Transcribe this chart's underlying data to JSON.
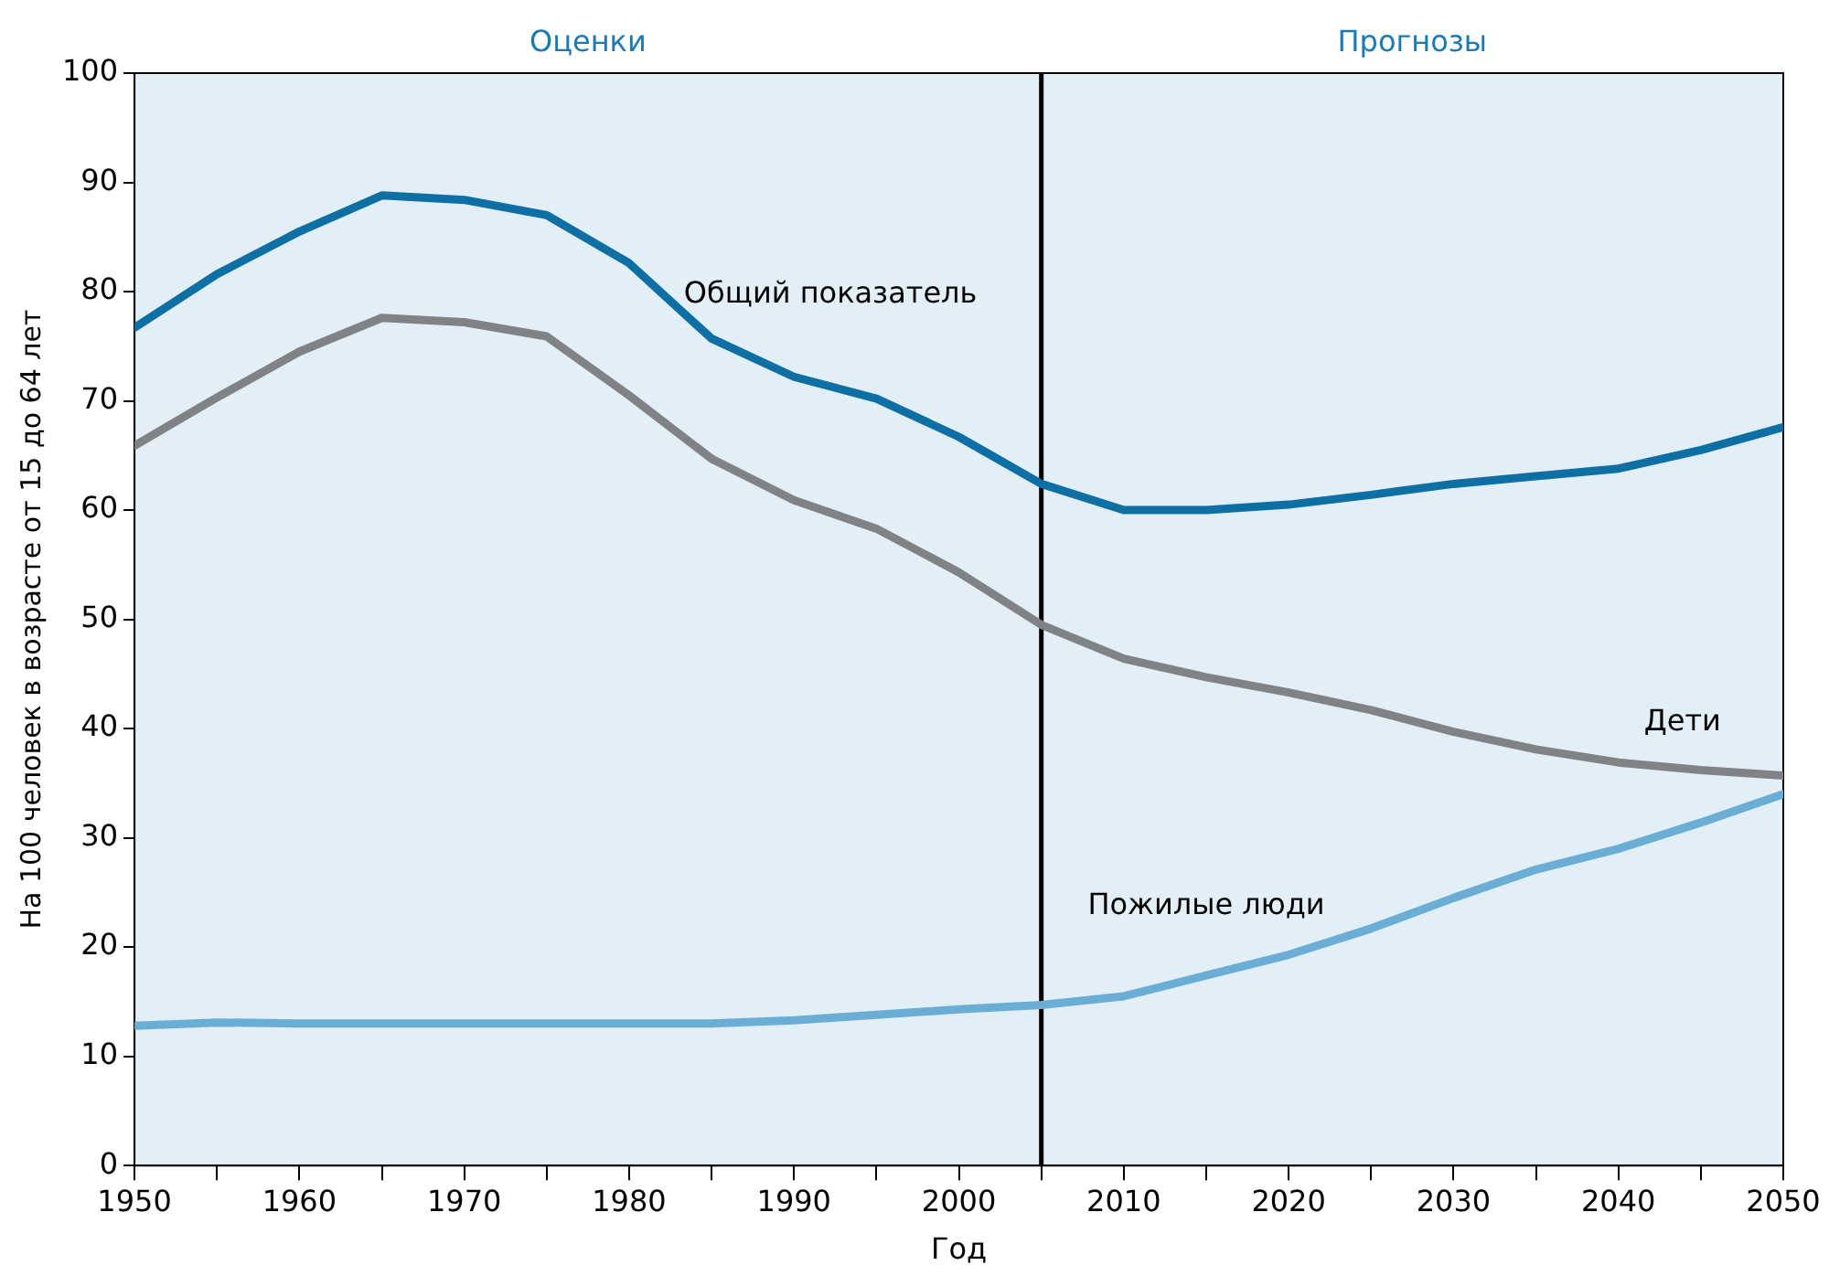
{
  "chart_data": {
    "type": "line",
    "xlabel": "Год",
    "ylabel": "На 100 человек в возрасте от 15 до 64 лет",
    "x": [
      1950,
      1955,
      1960,
      1965,
      1970,
      1975,
      1980,
      1985,
      1990,
      1995,
      2000,
      2005,
      2010,
      2015,
      2020,
      2025,
      2030,
      2035,
      2040,
      2045,
      2050
    ],
    "series": [
      {
        "name": "Общий показатель",
        "color": "#0e6fa5",
        "values": [
          76.7,
          81.6,
          85.5,
          88.8,
          88.4,
          87,
          82.6,
          75.7,
          72.2,
          70.2,
          66.7,
          62.4,
          60,
          60,
          60.5,
          61.4,
          62.4,
          63.1,
          63.8,
          65.5,
          67.6
        ]
      },
      {
        "name": "Дети",
        "color": "#808285",
        "values": [
          65.9,
          70.3,
          74.5,
          77.6,
          77.2,
          75.9,
          70.5,
          64.7,
          60.9,
          58.3,
          54.3,
          49.5,
          46.4,
          44.7,
          43.3,
          41.7,
          39.7,
          38.1,
          36.9,
          36.2,
          35.7
        ]
      },
      {
        "name": "Пожилые люди",
        "color": "#6aaed6",
        "values": [
          12.8,
          13.1,
          13,
          13,
          13,
          13,
          13,
          13,
          13.3,
          13.8,
          14.3,
          14.7,
          15.5,
          17.4,
          19.3,
          21.7,
          24.5,
          27.1,
          29,
          31.4,
          34
        ]
      }
    ],
    "xlim": [
      1950,
      2050
    ],
    "xticks": [
      1950,
      {
        "value": 1955,
        "label": null
      },
      1960,
      {
        "value": 1965,
        "label": null
      },
      1970,
      {
        "value": 1975,
        "label": null
      },
      1980,
      {
        "value": 1985,
        "label": null
      },
      1990,
      {
        "value": 1995,
        "label": null
      },
      2000,
      {
        "value": 2005,
        "label": null
      },
      2010,
      {
        "value": 2015,
        "label": null
      },
      2020,
      {
        "value": 2025,
        "label": null
      },
      2030,
      {
        "value": 2035,
        "label": null
      },
      2040,
      {
        "value": 2045,
        "label": null
      },
      2050
    ],
    "ylim": [
      0,
      100
    ],
    "yticks": [
      0,
      10,
      20,
      30,
      40,
      50,
      60,
      70,
      80,
      90,
      100
    ],
    "grid": false,
    "legend": false,
    "marker": "none",
    "line_style": "solid",
    "bands": [
      {
        "axis": "x",
        "from": 1950,
        "to": 2005,
        "label": "Оценки",
        "color": "#e2eff7"
      },
      {
        "axis": "x",
        "from": 2005,
        "to": 2050,
        "label": "Прогнозы",
        "color": "#e2eff7"
      }
    ],
    "ref_lines": [
      {
        "axis": "x",
        "value": 2005,
        "color": "#000000"
      }
    ]
  }
}
